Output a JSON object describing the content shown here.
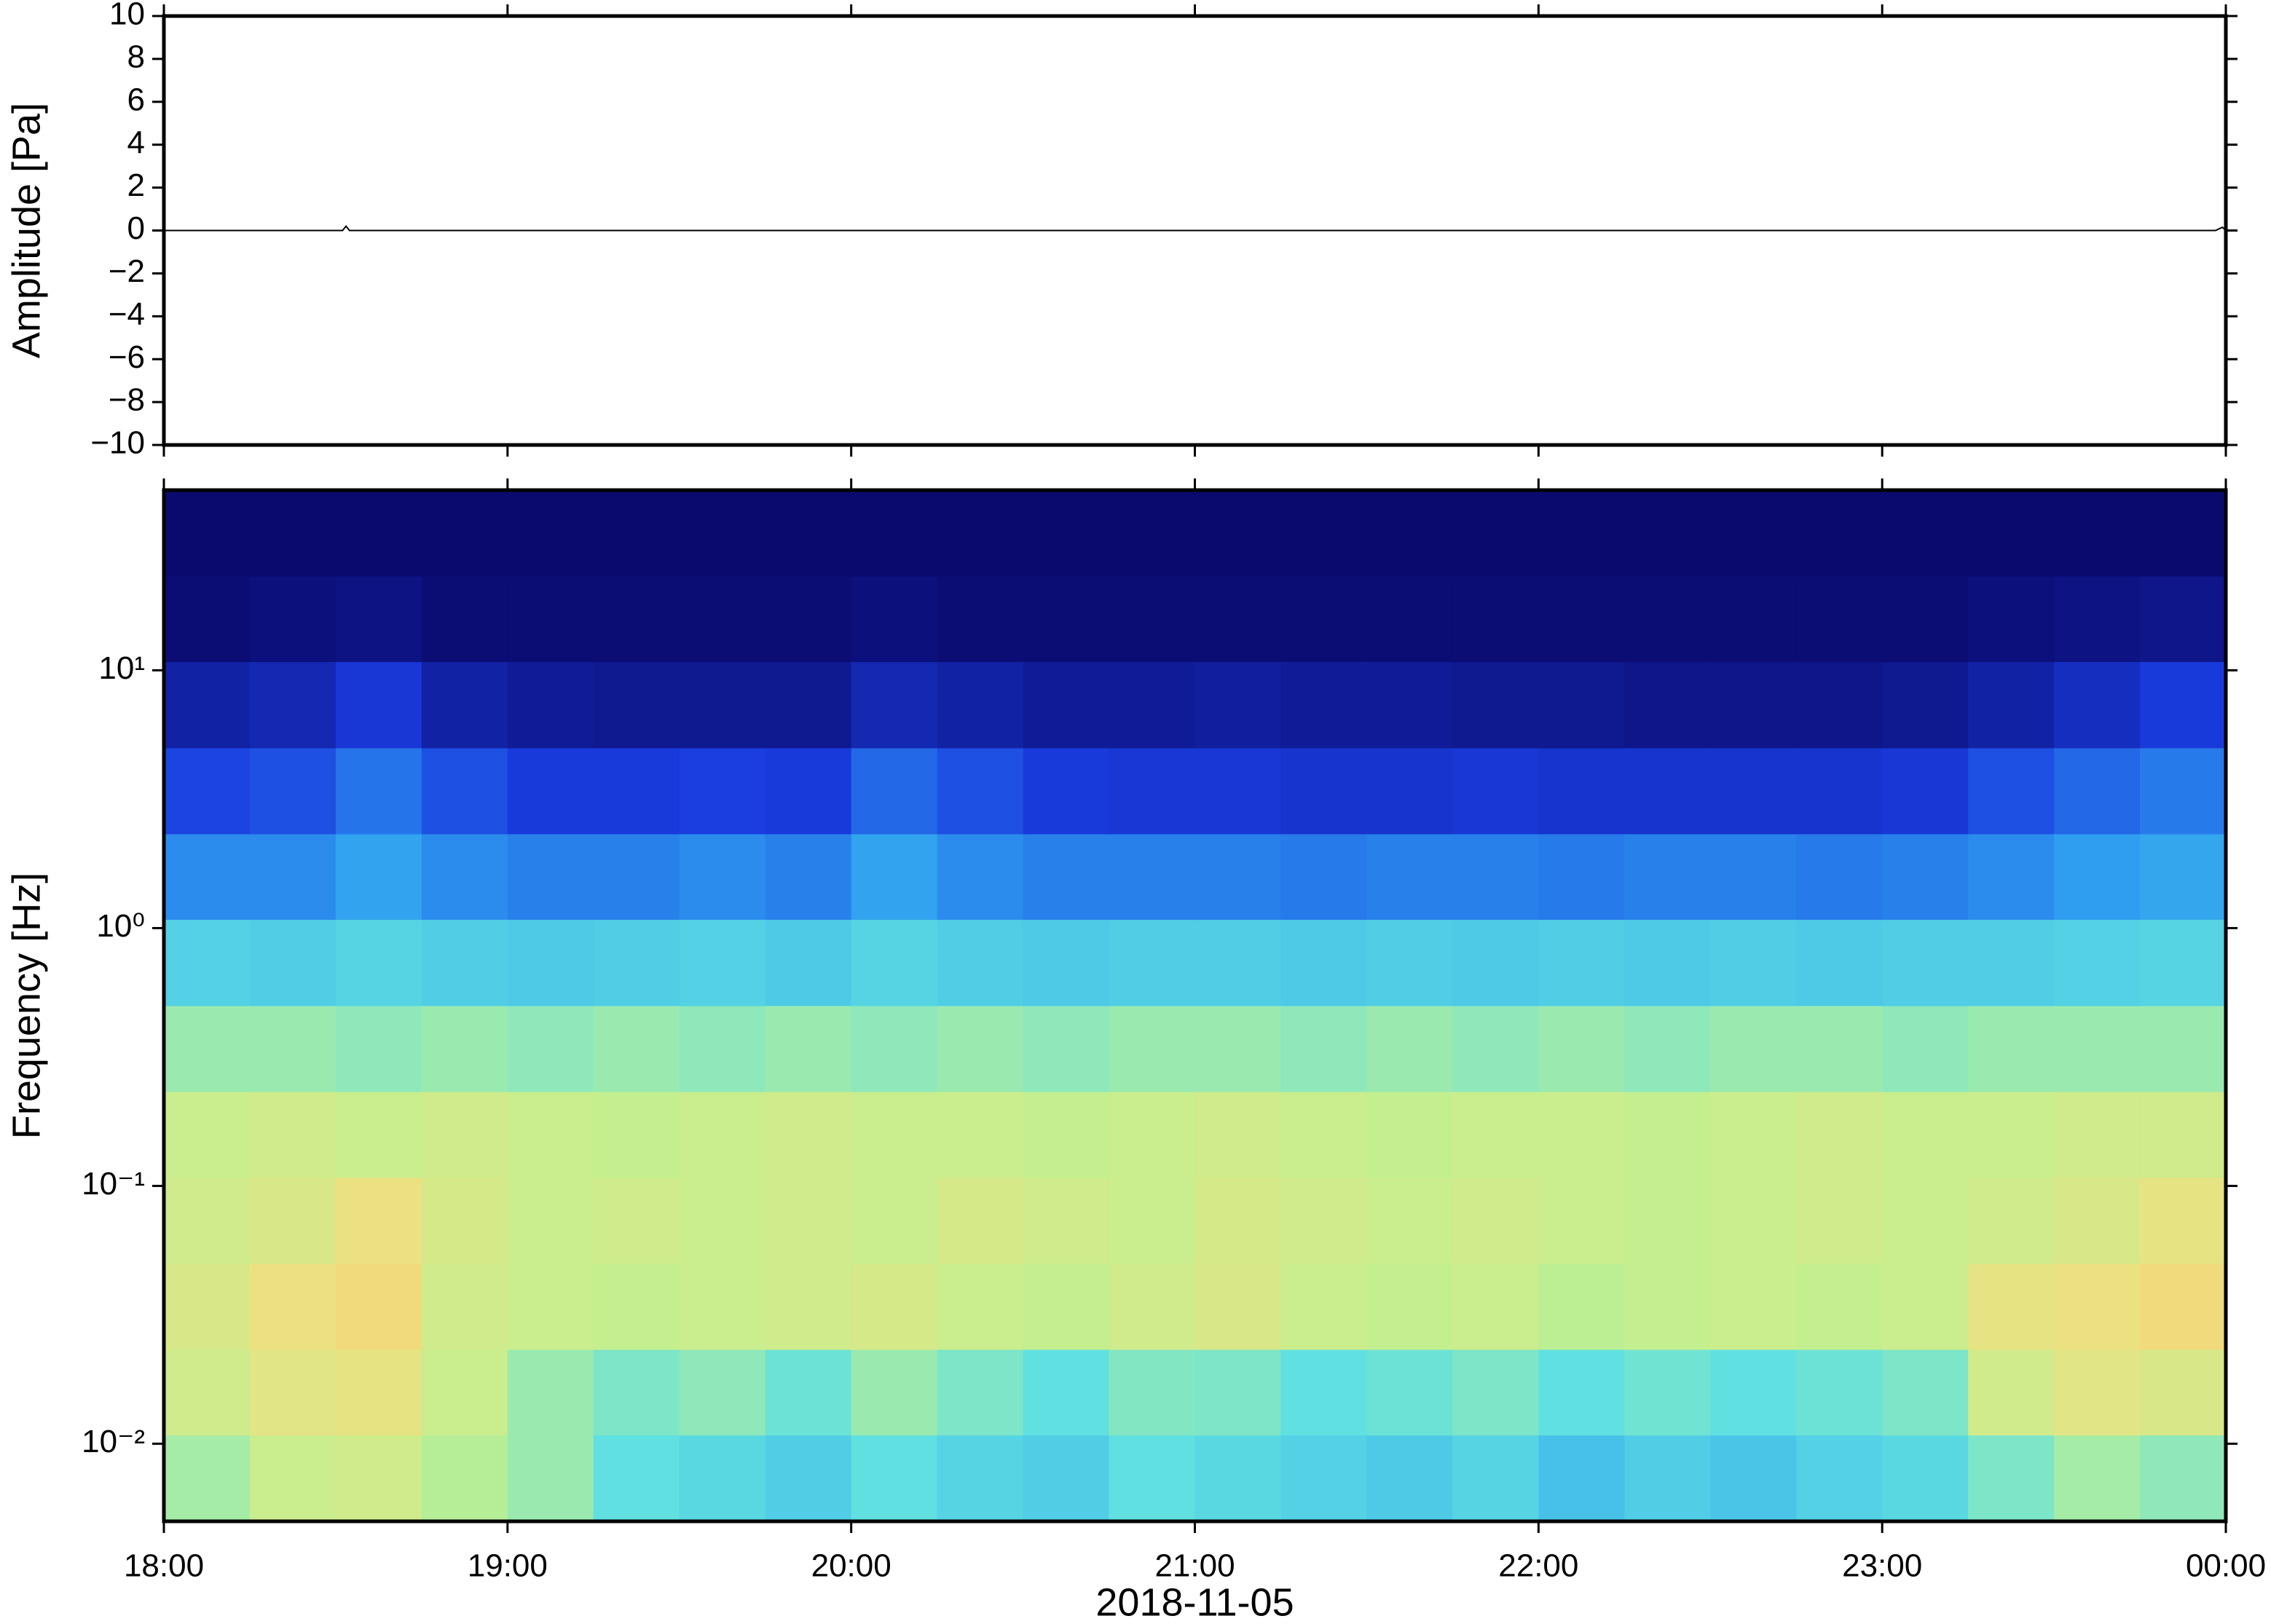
{
  "chart_data": [
    {
      "type": "line",
      "ylabel": "Amplitude [Pa]",
      "xlim": [
        18,
        24
      ],
      "ylim": [
        -10,
        10
      ],
      "yticks": [
        {
          "value": -10,
          "label": "−10"
        },
        {
          "value": -8,
          "label": "−8"
        },
        {
          "value": -6,
          "label": "−6"
        },
        {
          "value": -4,
          "label": "−4"
        },
        {
          "value": -2,
          "label": "−2"
        },
        0,
        2,
        4,
        6,
        8,
        10
      ],
      "x": [
        18,
        18.52,
        18.53,
        18.54,
        23.97,
        23.99,
        24
      ],
      "values": [
        0,
        0,
        0.2,
        0,
        0,
        0.15,
        0
      ],
      "color": "#000000"
    },
    {
      "type": "heatmap",
      "ylabel": "Frequency [Hz]",
      "xlabel": "2018-11-05",
      "log_y": true,
      "xlim": [
        18,
        24
      ],
      "ylim": [
        0.005,
        50
      ],
      "xticks": [
        {
          "value": 18,
          "label": "18:00"
        },
        {
          "value": 19,
          "label": "19:00"
        },
        {
          "value": 20,
          "label": "20:00"
        },
        {
          "value": 21,
          "label": "21:00"
        },
        {
          "value": 22,
          "label": "22:00"
        },
        {
          "value": 23,
          "label": "23:00"
        },
        {
          "value": 24,
          "label": "00:00"
        }
      ],
      "yticks": [
        {
          "value": 0.01,
          "label": "10⁻²"
        },
        {
          "value": 0.1,
          "label": "10⁻¹"
        },
        {
          "value": 1,
          "label": "10⁰"
        },
        {
          "value": 10,
          "label": "10¹"
        }
      ],
      "colormap": [
        "#0a0a6e",
        "#1a3ce0",
        "#2fa0f0",
        "#60e0e0",
        "#c0f090",
        "#f0e080",
        "#f0a050"
      ],
      "time_bins": [
        18,
        18.25,
        18.5,
        18.75,
        19,
        19.25,
        19.5,
        19.75,
        20,
        20.25,
        20.5,
        20.75,
        21,
        21.25,
        21.5,
        21.75,
        22,
        22.25,
        22.5,
        22.75,
        23,
        23.25,
        23.5,
        23.75,
        24
      ],
      "freq_bins": [
        0.005,
        0.0108,
        0.0232,
        0.05,
        0.108,
        0.232,
        0.5,
        1.08,
        2.32,
        5,
        10.8,
        23.2,
        50
      ],
      "z": [
        [
          0.62,
          0.7,
          0.72,
          0.65,
          0.6,
          0.5,
          0.48,
          0.45,
          0.5,
          0.47,
          0.45,
          0.5,
          0.48,
          0.46,
          0.44,
          0.47,
          0.42,
          0.45,
          0.43,
          0.46,
          0.48,
          0.55,
          0.62,
          0.58
        ],
        [
          0.72,
          0.78,
          0.8,
          0.7,
          0.6,
          0.55,
          0.58,
          0.52,
          0.6,
          0.55,
          0.5,
          0.56,
          0.55,
          0.5,
          0.52,
          0.55,
          0.5,
          0.53,
          0.5,
          0.52,
          0.55,
          0.72,
          0.78,
          0.75
        ],
        [
          0.75,
          0.82,
          0.85,
          0.72,
          0.7,
          0.68,
          0.7,
          0.72,
          0.74,
          0.7,
          0.68,
          0.72,
          0.75,
          0.7,
          0.68,
          0.7,
          0.66,
          0.68,
          0.7,
          0.68,
          0.7,
          0.8,
          0.82,
          0.85
        ],
        [
          0.72,
          0.75,
          0.82,
          0.74,
          0.7,
          0.72,
          0.7,
          0.72,
          0.7,
          0.74,
          0.72,
          0.7,
          0.74,
          0.72,
          0.7,
          0.72,
          0.7,
          0.68,
          0.7,
          0.72,
          0.7,
          0.72,
          0.75,
          0.8
        ],
        [
          0.7,
          0.72,
          0.7,
          0.72,
          0.7,
          0.68,
          0.7,
          0.72,
          0.7,
          0.7,
          0.68,
          0.7,
          0.72,
          0.7,
          0.68,
          0.7,
          0.7,
          0.68,
          0.7,
          0.72,
          0.7,
          0.7,
          0.72,
          0.72
        ],
        [
          0.6,
          0.6,
          0.58,
          0.6,
          0.58,
          0.6,
          0.58,
          0.6,
          0.58,
          0.6,
          0.58,
          0.6,
          0.6,
          0.58,
          0.6,
          0.58,
          0.6,
          0.58,
          0.6,
          0.6,
          0.58,
          0.6,
          0.6,
          0.6
        ],
        [
          0.46,
          0.45,
          0.47,
          0.45,
          0.44,
          0.45,
          0.46,
          0.44,
          0.47,
          0.45,
          0.44,
          0.45,
          0.45,
          0.44,
          0.45,
          0.44,
          0.45,
          0.44,
          0.45,
          0.44,
          0.45,
          0.45,
          0.46,
          0.47
        ],
        [
          0.3,
          0.3,
          0.34,
          0.3,
          0.28,
          0.28,
          0.3,
          0.28,
          0.34,
          0.3,
          0.28,
          0.28,
          0.28,
          0.27,
          0.28,
          0.28,
          0.27,
          0.28,
          0.28,
          0.27,
          0.28,
          0.3,
          0.33,
          0.35
        ],
        [
          0.18,
          0.2,
          0.26,
          0.2,
          0.16,
          0.16,
          0.17,
          0.16,
          0.24,
          0.2,
          0.16,
          0.15,
          0.15,
          0.14,
          0.14,
          0.15,
          0.14,
          0.14,
          0.14,
          0.14,
          0.15,
          0.2,
          0.24,
          0.27
        ],
        [
          0.08,
          0.1,
          0.15,
          0.08,
          0.06,
          0.05,
          0.05,
          0.05,
          0.1,
          0.08,
          0.06,
          0.06,
          0.07,
          0.06,
          0.06,
          0.05,
          0.05,
          0.04,
          0.04,
          0.04,
          0.05,
          0.08,
          0.12,
          0.16
        ],
        [
          0.01,
          0.02,
          0.03,
          0.01,
          0.01,
          0.01,
          0.01,
          0.01,
          0.02,
          0.01,
          0.01,
          0.01,
          0.01,
          0.01,
          0.01,
          0.01,
          0.01,
          0.01,
          0.01,
          0.01,
          0.01,
          0.02,
          0.03,
          0.04
        ],
        [
          0,
          0,
          0,
          0,
          0,
          0,
          0,
          0,
          0,
          0,
          0,
          0,
          0,
          0,
          0,
          0,
          0,
          0,
          0,
          0,
          0,
          0,
          0,
          0
        ]
      ]
    }
  ]
}
